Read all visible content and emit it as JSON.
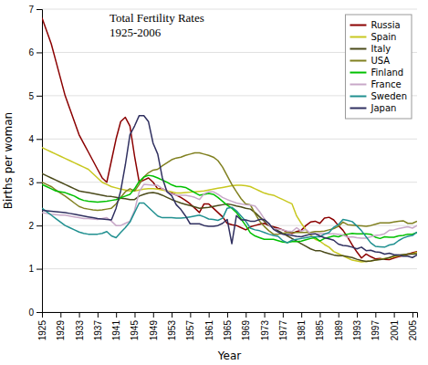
{
  "chart_data": {
    "type": "line",
    "title": "Total Fertility Rates\n1925-2006",
    "xlabel": "Year",
    "ylabel": "Births per woman",
    "xlim": [
      1925,
      2006
    ],
    "ylim": [
      0,
      7
    ],
    "xticks": [
      1925,
      1929,
      1933,
      1937,
      1941,
      1945,
      1949,
      1953,
      1957,
      1961,
      1965,
      1969,
      1973,
      1977,
      1981,
      1985,
      1989,
      1993,
      1997,
      2001,
      2005
    ],
    "yticks": [
      0,
      1,
      2,
      3,
      4,
      5,
      6,
      7
    ],
    "grid": true,
    "legend": "upper right",
    "x": [
      1925,
      1926,
      1927,
      1928,
      1929,
      1930,
      1931,
      1932,
      1933,
      1934,
      1935,
      1936,
      1937,
      1938,
      1939,
      1940,
      1941,
      1942,
      1943,
      1944,
      1945,
      1946,
      1947,
      1948,
      1949,
      1950,
      1951,
      1952,
      1953,
      1954,
      1955,
      1956,
      1957,
      1958,
      1959,
      1960,
      1961,
      1962,
      1963,
      1964,
      1965,
      1966,
      1967,
      1968,
      1969,
      1970,
      1971,
      1972,
      1973,
      1974,
      1975,
      1976,
      1977,
      1978,
      1979,
      1980,
      1981,
      1982,
      1983,
      1984,
      1985,
      1986,
      1987,
      1988,
      1989,
      1990,
      1991,
      1992,
      1993,
      1994,
      1995,
      1996,
      1997,
      1998,
      1999,
      2000,
      2001,
      2002,
      2003,
      2004,
      2005,
      2006
    ],
    "series": [
      {
        "name": "Russia",
        "color": "#8B0000",
        "values": [
          6.8,
          6.5,
          6.2,
          5.8,
          5.4,
          5.0,
          4.7,
          4.4,
          4.1,
          3.9,
          3.7,
          3.5,
          3.3,
          3.1,
          3.0,
          3.5,
          4.0,
          4.4,
          4.5,
          4.3,
          3.6,
          3.0,
          3.05,
          3.1,
          3.0,
          2.85,
          2.85,
          2.8,
          2.75,
          2.7,
          2.65,
          2.58,
          2.5,
          2.4,
          2.3,
          2.5,
          2.5,
          2.4,
          2.3,
          2.2,
          2.05,
          2.02,
          2.0,
          1.95,
          1.9,
          1.97,
          2.0,
          2.03,
          2.05,
          2.0,
          1.97,
          1.94,
          1.9,
          1.85,
          1.82,
          1.86,
          1.89,
          2.0,
          2.08,
          2.1,
          2.05,
          2.17,
          2.19,
          2.13,
          2.0,
          1.89,
          1.73,
          1.55,
          1.39,
          1.25,
          1.34,
          1.28,
          1.23,
          1.24,
          1.22,
          1.21,
          1.25,
          1.28,
          1.3,
          1.34,
          1.37,
          1.4
        ]
      },
      {
        "name": "Spain",
        "color": "#c8c820",
        "values": [
          3.8,
          3.75,
          3.7,
          3.65,
          3.6,
          3.55,
          3.5,
          3.45,
          3.4,
          3.35,
          3.3,
          3.2,
          3.1,
          3.0,
          2.95,
          2.9,
          2.87,
          2.84,
          2.82,
          2.8,
          2.8,
          2.82,
          2.84,
          2.85,
          2.85,
          2.84,
          2.82,
          2.8,
          2.78,
          2.75,
          2.75,
          2.76,
          2.77,
          2.78,
          2.79,
          2.8,
          2.82,
          2.84,
          2.86,
          2.88,
          2.9,
          2.92,
          2.93,
          2.93,
          2.92,
          2.9,
          2.85,
          2.8,
          2.75,
          2.72,
          2.7,
          2.65,
          2.6,
          2.55,
          2.5,
          2.22,
          2.05,
          1.9,
          1.78,
          1.68,
          1.64,
          1.56,
          1.5,
          1.4,
          1.35,
          1.3,
          1.25,
          1.2,
          1.18,
          1.16,
          1.17,
          1.18,
          1.2,
          1.22,
          1.24,
          1.25,
          1.28,
          1.3,
          1.32,
          1.34,
          1.35,
          1.38
        ]
      },
      {
        "name": "Italy",
        "color": "#4a4a1a",
        "values": [
          3.2,
          3.15,
          3.1,
          3.05,
          3.0,
          2.95,
          2.9,
          2.85,
          2.8,
          2.78,
          2.76,
          2.74,
          2.72,
          2.7,
          2.68,
          2.67,
          2.65,
          2.63,
          2.62,
          2.6,
          2.6,
          2.68,
          2.72,
          2.75,
          2.76,
          2.74,
          2.7,
          2.65,
          2.6,
          2.56,
          2.52,
          2.49,
          2.46,
          2.43,
          2.4,
          2.41,
          2.42,
          2.44,
          2.46,
          2.48,
          2.5,
          2.48,
          2.45,
          2.43,
          2.4,
          2.38,
          2.3,
          2.2,
          2.1,
          2.0,
          1.95,
          1.88,
          1.82,
          1.76,
          1.7,
          1.64,
          1.58,
          1.52,
          1.46,
          1.42,
          1.42,
          1.38,
          1.35,
          1.32,
          1.3,
          1.3,
          1.28,
          1.26,
          1.22,
          1.19,
          1.17,
          1.18,
          1.2,
          1.21,
          1.23,
          1.26,
          1.3,
          1.32,
          1.33,
          1.34,
          1.34,
          1.35
        ]
      },
      {
        "name": "USA",
        "color": "#808020",
        "values": [
          3.0,
          2.95,
          2.9,
          2.82,
          2.75,
          2.68,
          2.6,
          2.52,
          2.44,
          2.4,
          2.38,
          2.36,
          2.35,
          2.36,
          2.38,
          2.4,
          2.5,
          2.65,
          2.78,
          2.85,
          2.8,
          2.95,
          3.12,
          3.22,
          3.28,
          3.3,
          3.38,
          3.45,
          3.52,
          3.56,
          3.58,
          3.62,
          3.65,
          3.68,
          3.68,
          3.65,
          3.62,
          3.58,
          3.5,
          3.35,
          3.15,
          2.95,
          2.78,
          2.62,
          2.5,
          2.48,
          2.28,
          2.1,
          1.98,
          1.88,
          1.8,
          1.8,
          1.82,
          1.84,
          1.84,
          1.84,
          1.84,
          1.84,
          1.84,
          1.86,
          1.86,
          1.87,
          1.9,
          1.93,
          1.98,
          2.08,
          2.02,
          2.01,
          2.0,
          1.99,
          1.98,
          2.0,
          2.03,
          2.06,
          2.06,
          2.06,
          2.08,
          2.1,
          2.11,
          2.05,
          2.05,
          2.1
        ]
      },
      {
        "name": "Finland",
        "color": "#00c000",
        "values": [
          2.95,
          2.9,
          2.85,
          2.8,
          2.78,
          2.76,
          2.72,
          2.68,
          2.62,
          2.58,
          2.56,
          2.55,
          2.54,
          2.55,
          2.56,
          2.58,
          2.6,
          2.64,
          2.68,
          2.72,
          2.85,
          3.02,
          3.12,
          3.16,
          3.14,
          3.1,
          3.05,
          3.0,
          2.94,
          2.9,
          2.9,
          2.88,
          2.82,
          2.76,
          2.7,
          2.72,
          2.74,
          2.72,
          2.65,
          2.56,
          2.47,
          2.4,
          2.3,
          2.15,
          2.0,
          1.83,
          1.76,
          1.72,
          1.68,
          1.68,
          1.68,
          1.65,
          1.62,
          1.61,
          1.63,
          1.63,
          1.64,
          1.67,
          1.7,
          1.72,
          1.64,
          1.7,
          1.73,
          1.76,
          1.74,
          1.78,
          1.8,
          1.82,
          1.81,
          1.81,
          1.81,
          1.8,
          1.73,
          1.7,
          1.74,
          1.73,
          1.73,
          1.76,
          1.77,
          1.8,
          1.8,
          1.84
        ]
      },
      {
        "name": "France",
        "color": "#c8a8c8",
        "values": [
          2.3,
          2.28,
          2.26,
          2.25,
          2.24,
          2.24,
          2.22,
          2.2,
          2.18,
          2.16,
          2.16,
          2.15,
          2.14,
          2.16,
          2.18,
          2.1,
          2.0,
          2.0,
          2.05,
          2.1,
          2.35,
          2.78,
          2.95,
          2.94,
          2.93,
          2.93,
          2.85,
          2.8,
          2.73,
          2.7,
          2.7,
          2.7,
          2.68,
          2.65,
          2.6,
          2.73,
          2.78,
          2.78,
          2.72,
          2.65,
          2.6,
          2.56,
          2.52,
          2.5,
          2.48,
          2.47,
          2.45,
          2.32,
          2.16,
          2.01,
          1.93,
          1.92,
          1.9,
          1.87,
          1.86,
          1.95,
          1.87,
          1.91,
          1.81,
          1.81,
          1.81,
          1.82,
          1.81,
          1.81,
          1.8,
          1.78,
          1.73,
          1.74,
          1.72,
          1.71,
          1.71,
          1.74,
          1.77,
          1.78,
          1.81,
          1.89,
          1.9,
          1.93,
          1.95,
          1.97,
          1.94,
          2.0
        ]
      },
      {
        "name": "Sweden",
        "color": "#209090",
        "values": [
          2.4,
          2.32,
          2.24,
          2.16,
          2.08,
          2.0,
          1.95,
          1.9,
          1.85,
          1.82,
          1.8,
          1.8,
          1.8,
          1.82,
          1.86,
          1.76,
          1.72,
          1.84,
          1.95,
          2.08,
          2.3,
          2.52,
          2.52,
          2.42,
          2.32,
          2.22,
          2.18,
          2.18,
          2.18,
          2.17,
          2.17,
          2.18,
          2.2,
          2.22,
          2.24,
          2.2,
          2.15,
          2.14,
          2.12,
          2.17,
          2.4,
          2.42,
          2.34,
          2.22,
          2.1,
          1.94,
          1.9,
          1.88,
          1.84,
          1.8,
          1.77,
          1.75,
          1.65,
          1.6,
          1.66,
          1.68,
          1.7,
          1.72,
          1.74,
          1.74,
          1.74,
          1.8,
          1.84,
          1.96,
          2.02,
          2.14,
          2.12,
          2.09,
          1.99,
          1.88,
          1.74,
          1.6,
          1.52,
          1.51,
          1.5,
          1.55,
          1.57,
          1.65,
          1.71,
          1.75,
          1.77,
          1.85
        ]
      },
      {
        "name": "Japan",
        "color": "#303060",
        "values": [
          2.35,
          2.34,
          2.33,
          2.32,
          2.31,
          2.3,
          2.28,
          2.26,
          2.24,
          2.22,
          2.2,
          2.18,
          2.16,
          2.15,
          2.14,
          2.13,
          2.4,
          2.8,
          3.4,
          4.1,
          4.3,
          4.54,
          4.54,
          4.4,
          3.9,
          3.65,
          3.1,
          2.78,
          2.69,
          2.48,
          2.37,
          2.22,
          2.04,
          2.04,
          2.04,
          2.0,
          1.98,
          1.98,
          2.0,
          2.05,
          2.14,
          1.58,
          2.23,
          2.13,
          2.13,
          2.1,
          2.1,
          2.14,
          2.14,
          2.05,
          1.91,
          1.85,
          1.8,
          1.79,
          1.77,
          1.75,
          1.74,
          1.77,
          1.8,
          1.81,
          1.76,
          1.72,
          1.69,
          1.66,
          1.57,
          1.54,
          1.53,
          1.5,
          1.46,
          1.5,
          1.42,
          1.43,
          1.39,
          1.38,
          1.34,
          1.36,
          1.33,
          1.32,
          1.29,
          1.29,
          1.26,
          1.32
        ]
      }
    ]
  }
}
